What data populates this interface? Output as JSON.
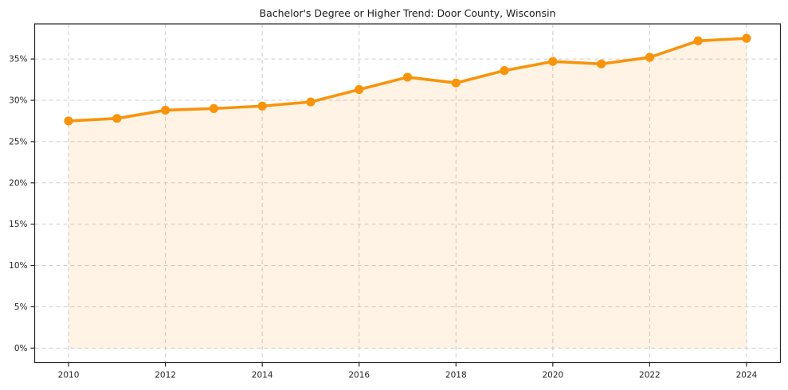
{
  "chart_data": {
    "type": "line",
    "title": "Bachelor's Degree or Higher Trend: Door County, Wisconsin",
    "xlabel": "",
    "ylabel": "",
    "x": [
      2010,
      2011,
      2012,
      2013,
      2014,
      2015,
      2016,
      2017,
      2018,
      2019,
      2020,
      2021,
      2022,
      2023,
      2024
    ],
    "series": [
      {
        "name": "Bachelor's degree or higher (%)",
        "values": [
          27.5,
          27.8,
          28.8,
          29.0,
          29.3,
          29.8,
          31.3,
          32.8,
          32.1,
          33.6,
          34.7,
          34.4,
          35.2,
          37.2,
          37.5
        ]
      }
    ],
    "x_ticks": [
      2010,
      2012,
      2014,
      2016,
      2018,
      2020,
      2022,
      2024
    ],
    "x_tick_labels": [
      "2010",
      "2012",
      "2014",
      "2016",
      "2018",
      "2020",
      "2022",
      "2024"
    ],
    "y_ticks": [
      0,
      5,
      10,
      15,
      20,
      25,
      30,
      35
    ],
    "y_tick_labels": [
      "0%",
      "5%",
      "10%",
      "15%",
      "20%",
      "25%",
      "30%",
      "35%"
    ],
    "xlim": [
      2009.3,
      2024.7
    ],
    "ylim": [
      -1.75,
      39.25
    ],
    "grid": true,
    "legend_position": "none",
    "area_fill": true,
    "marker_style": "circle",
    "colors": {
      "line": "#F7940C",
      "marker": "#F7940C",
      "area_fill": "rgba(247, 148, 12, 0.11)",
      "grid": "#cccccc",
      "spine": "#262626",
      "tick_label": "#262626",
      "title": "#1a1a1a",
      "background": "#ffffff"
    }
  }
}
